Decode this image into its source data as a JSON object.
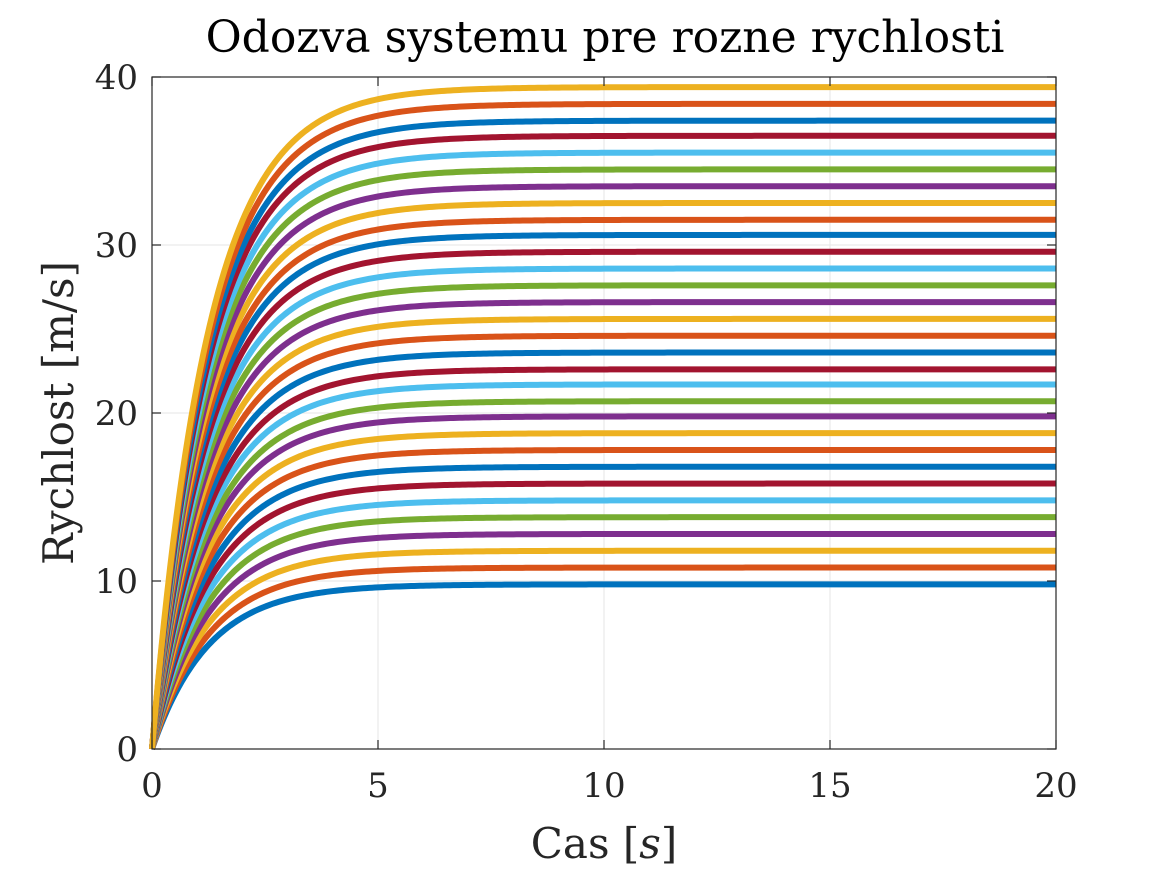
{
  "chart_data": {
    "type": "line",
    "title": "Odozva systemu pre rozne rychlosti",
    "xlabel_text": "Cas",
    "xlabel_unit": "s",
    "ylabel": "Rychlost [m/s]",
    "xlim": [
      0,
      20
    ],
    "ylim": [
      0,
      40
    ],
    "xticks": [
      0,
      5,
      10,
      15,
      20
    ],
    "yticks": [
      0,
      10,
      20,
      30,
      40
    ],
    "grid": true,
    "time_constant_s": 1.25,
    "final_values": [
      9.8,
      10.8,
      11.8,
      12.8,
      13.8,
      14.8,
      15.8,
      16.8,
      17.8,
      18.8,
      19.8,
      20.7,
      21.7,
      22.6,
      23.6,
      24.6,
      25.6,
      26.6,
      27.6,
      28.6,
      29.6,
      30.6,
      31.5,
      32.5,
      33.5,
      34.5,
      35.5,
      36.5,
      37.4,
      38.4,
      39.4
    ],
    "color_cycle": [
      "#0072BD",
      "#D95319",
      "#EDB120",
      "#7E2F8E",
      "#77AC30",
      "#4DBEEE",
      "#A2142F"
    ]
  }
}
